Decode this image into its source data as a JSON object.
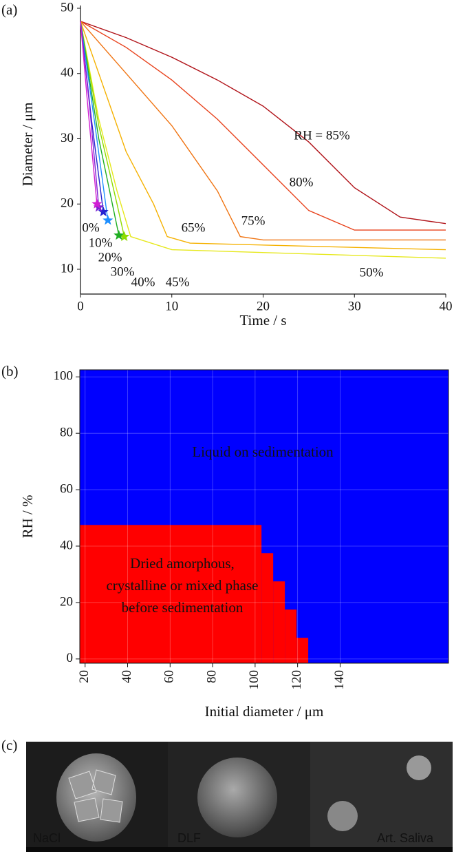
{
  "chart_data": [
    {
      "type": "line",
      "panel_label": "(a)",
      "x_label": "Time / s",
      "y_label": "Diameter / μm",
      "xlim": [
        0,
        40
      ],
      "ylim": [
        6.2,
        50
      ],
      "xticks": [
        0,
        10,
        20,
        30,
        40
      ],
      "yticks": [
        10,
        20,
        30,
        40,
        50
      ],
      "series": [
        {
          "name": "RH = 85%",
          "color": "#b01218",
          "x": [
            0,
            5,
            10,
            15,
            20,
            25,
            30,
            35,
            40
          ],
          "values": [
            48,
            45.5,
            42.5,
            39,
            35,
            29.5,
            22.5,
            18,
            17
          ]
        },
        {
          "name": "80%",
          "color": "#e8421c",
          "x": [
            0,
            5,
            10,
            15,
            20,
            25,
            30,
            40
          ],
          "values": [
            48,
            44,
            39,
            33,
            26,
            19,
            16,
            16
          ]
        },
        {
          "name": "75%",
          "color": "#f07412",
          "x": [
            0,
            5,
            10,
            15,
            17.5,
            20,
            40
          ],
          "values": [
            48,
            40,
            32,
            22,
            15,
            14.5,
            14.5
          ]
        },
        {
          "name": "65%",
          "color": "#f5b100",
          "x": [
            0,
            2,
            5,
            8,
            9.5,
            12,
            40
          ],
          "values": [
            48,
            40,
            28,
            20,
            15,
            14,
            13
          ]
        },
        {
          "name": "50%",
          "color": "#e6e81c",
          "x": [
            0,
            2,
            4,
            5.5,
            10,
            40
          ],
          "values": [
            48,
            33,
            22,
            15,
            13,
            11.7
          ]
        },
        {
          "name": "45%",
          "color": "#8fdc00",
          "x": [
            0,
            2,
            4,
            4.8
          ],
          "values": [
            48,
            32,
            20,
            15
          ],
          "end_marker": "star"
        },
        {
          "name": "40%",
          "color": "#1fae22",
          "x": [
            0,
            2,
            4.2
          ],
          "values": [
            48,
            30,
            15.2
          ],
          "end_marker": "star"
        },
        {
          "name": "30%",
          "color": "#1e8fff",
          "x": [
            0,
            1.5,
            3
          ],
          "values": [
            48,
            33,
            17.5
          ],
          "end_marker": "star"
        },
        {
          "name": "20%",
          "color": "#2424d0",
          "x": [
            0,
            1.2,
            2.5
          ],
          "values": [
            48,
            33,
            18.8
          ],
          "end_marker": "star"
        },
        {
          "name": "10%",
          "color": "#7f22d2",
          "x": [
            0,
            1,
            2
          ],
          "values": [
            48,
            35,
            19.5
          ],
          "end_marker": "star"
        },
        {
          "name": "0%",
          "color": "#d21ed2",
          "x": [
            0,
            0.8,
            1.8
          ],
          "values": [
            48,
            35,
            20
          ],
          "end_marker": "star"
        }
      ]
    },
    {
      "type": "region",
      "panel_label": "(b)",
      "x_label": "Initial diameter / μm",
      "y_label": "RH / %",
      "xlim": [
        17.5,
        191
      ],
      "ylim": [
        -1.5,
        102.5
      ],
      "xticks": [
        20,
        40,
        60,
        80,
        100,
        120,
        140
      ],
      "yticks": [
        0,
        20,
        40,
        60,
        80,
        100
      ],
      "grid": true,
      "background_color": "#0000ff",
      "region_color": "#ff0000",
      "steps": {
        "x": [
          17.5,
          103,
          108.5,
          114,
          119.5,
          125
        ],
        "rh_top": [
          47.5,
          37.5,
          27.5,
          17.5,
          7.5
        ]
      },
      "liquid_label": "Liquid on sedimentation",
      "dried_label": [
        "Dried amorphous,",
        "crystalline or mixed phase",
        "before sedimentation"
      ]
    }
  ],
  "images": {
    "panel_label": "(c)",
    "items": [
      "NaCl",
      "DLF",
      "Art. Saliva"
    ]
  }
}
